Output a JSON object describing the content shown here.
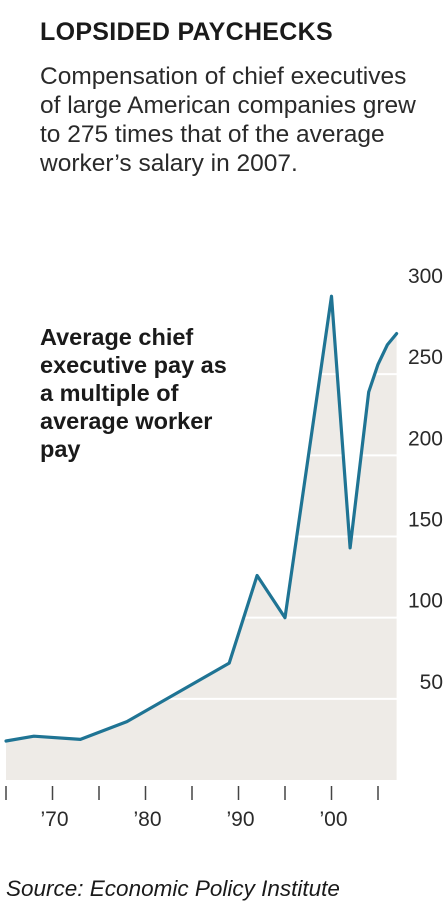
{
  "header": {
    "title": "LOPSIDED PAYCHECKS",
    "subtitle": "Compensation of chief executives of large American companies grew to 275 times that of the average worker’s salary in 2007."
  },
  "annotation": "Average chief executive pay as a multiple of average worker pay",
  "source": "Source: Economic Policy Institute",
  "chart_data": {
    "type": "area",
    "title": "LOPSIDED PAYCHECKS",
    "xlabel": "",
    "ylabel": "",
    "xlim": [
      1965,
      2007
    ],
    "ylim": [
      0,
      300
    ],
    "y_ticks": [
      50,
      100,
      150,
      200,
      250,
      300
    ],
    "y_tick_labels": [
      "50",
      "100",
      "150",
      "200",
      "250",
      "300"
    ],
    "x_tick_labels": [
      {
        "x": 1970,
        "label": "’70"
      },
      {
        "x": 1980,
        "label": "’80"
      },
      {
        "x": 1990,
        "label": "’90"
      },
      {
        "x": 2000,
        "label": "’00"
      }
    ],
    "x_minor_ticks": [
      1965,
      1970,
      1975,
      1980,
      1985,
      1990,
      1995,
      2000,
      2005
    ],
    "grid": true,
    "series": [
      {
        "x": [
          1965,
          1968,
          1973,
          1978,
          1989,
          1992,
          1995,
          2000,
          2002,
          2004,
          2005,
          2006,
          2007
        ],
        "values": [
          24,
          27,
          25,
          36,
          72,
          126,
          100,
          298,
          143,
          239,
          256,
          268,
          275
        ]
      }
    ],
    "colors": {
      "line": "#1f7494",
      "fill": "#eeebe7",
      "grid": "#ffffff",
      "tick": "#444444"
    }
  }
}
